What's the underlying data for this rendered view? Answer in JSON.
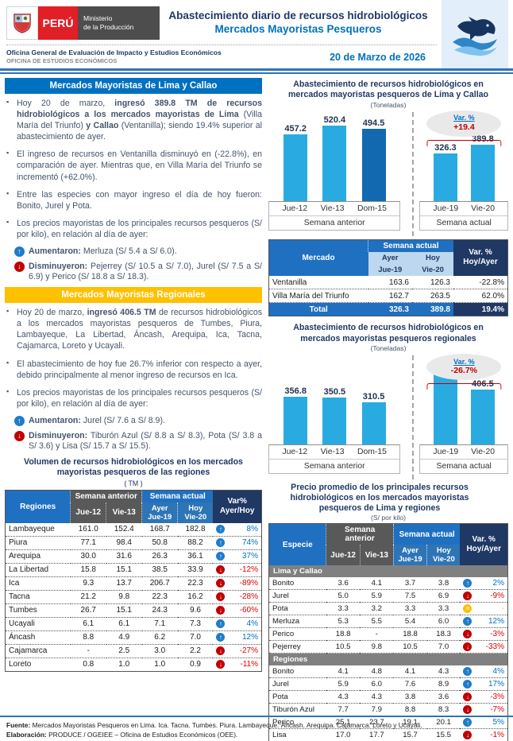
{
  "header": {
    "crest_icon": "peru-coat-of-arms",
    "country": "PERÚ",
    "ministry_line1": "Ministerio",
    "ministry_line2": "de la Producción",
    "title_line1": "Abastecimiento diario de recursos hidrobiológicos",
    "title_line2": "Mercados Mayoristas Pesqueros",
    "office_line1": "Oficina General de Evaluación de Impacto y Estudios Económicos",
    "office_line2": "OFICINA DE ESTUDIOS ECONÓMICOS",
    "date": "20 de Marzo de 2026",
    "fish_icon": "fish-over-waves"
  },
  "lima_section": {
    "title": "Mercados Mayoristas de Lima y Callao",
    "bullets": [
      "Hoy 20 de marzo, <b>ingresó 389.8 TM de recursos hidrobiológicos a los mercados mayoristas de Lima</b> (Villa María del Triunfo) <b>y Callao</b> (Ventanilla); siendo 19.4% superior al abastecimiento de ayer.",
      "El ingreso de recursos en Ventanilla disminuyó en (-22.8%), en comparación de ayer. Mientras que, en Villa María del Triunfo se incrementó (+62.0%).",
      "Entre las especies con mayor ingreso el día de hoy fueron: Bonito, Jurel y Pota.",
      "Los precios mayoristas de los principales recursos pesqueros (S/ por kilo), en relación al día de ayer:"
    ],
    "up_label": "Aumentaron:",
    "up_text": "Merluza (S/ 5.4 a S/ 6.0).",
    "down_label": "Disminuyeron:",
    "down_text": "Pejerrey (S/ 10.5 a S/ 7.0), Jurel (S/ 7.5 a S/ 6.9)  y Perico (S/ 18.8 a S/ 18.3)."
  },
  "regional_section": {
    "title": "Mercados Mayoristas Regionales",
    "bullets": [
      "Hoy 20 de marzo, <b>ingresó 406.5 TM</b> de recursos hidrobiológicos a los mercados mayoristas pesqueros de Tumbes, Piura, Lambayeque, La Libertad, Áncash, Arequipa, Ica, Tacna, Cajamarca, Loreto y Ucayali.",
      "El abastecimiento de hoy fue 26.7% inferior con respecto a ayer, debido principalmente al menor ingreso de recursos en Ica.",
      "Los precios mayoristas de los principales recursos pesqueros (S/ por kilo), en relación al día de ayer:"
    ],
    "up_label": "Aumentaron:",
    "up_text": "Jurel (S/ 7.6 a S/ 8.9).",
    "down_label": "Disminuyeron:",
    "down_text": "Tiburón Azul (S/ 8.8 a S/ 8.3), Pota (S/ 3.8 a S/ 3.6) y Lisa (S/ 15.7 a S/ 15.5)."
  },
  "regions_table": {
    "title_line1": "Volumen de recursos hidrobiológicos en los mercados",
    "title_line2": "mayoristas pesqueros de las regiones",
    "subtitle": "( TM )",
    "head": {
      "region": "Regiones",
      "prev": "Semana anterior",
      "curr": "Semana actual",
      "var1": "Var%",
      "var2": "Ayer/Hoy",
      "jue12": "Jue-12",
      "vie13": "Vie-13",
      "ayer": "Ayer",
      "hoy": "Hoy",
      "jue19": "Jue-19",
      "vie20": "Vie-20"
    },
    "rows": [
      {
        "name": "Lambayeque",
        "v": [
          "161.0",
          "152.4",
          "168.7",
          "182.8"
        ],
        "dir": "up",
        "var": "8%"
      },
      {
        "name": "Piura",
        "v": [
          "77.1",
          "98.4",
          "50.8",
          "88.2"
        ],
        "dir": "up",
        "var": "74%"
      },
      {
        "name": "Arequipa",
        "v": [
          "30.0",
          "31.6",
          "26.3",
          "36.1"
        ],
        "dir": "up",
        "var": "37%"
      },
      {
        "name": "La Libertad",
        "v": [
          "15.8",
          "15.1",
          "38.5",
          "33.9"
        ],
        "dir": "down",
        "var": "-12%"
      },
      {
        "name": "Ica",
        "v": [
          "9.3",
          "13.7",
          "206.7",
          "22.3"
        ],
        "dir": "down",
        "var": "-89%"
      },
      {
        "name": "Tacna",
        "v": [
          "21.2",
          "9.8",
          "22.3",
          "16.2"
        ],
        "dir": "down",
        "var": "-28%"
      },
      {
        "name": "Tumbes",
        "v": [
          "26.7",
          "15.1",
          "24.3",
          "9.6"
        ],
        "dir": "down",
        "var": "-60%"
      },
      {
        "name": "Ucayali",
        "v": [
          "6.1",
          "6.1",
          "7.1",
          "7.3"
        ],
        "dir": "up",
        "var": "4%"
      },
      {
        "name": "Áncash",
        "v": [
          "8.8",
          "4.9",
          "6.2",
          "7.0"
        ],
        "dir": "up",
        "var": "12%"
      },
      {
        "name": "Cajamarca",
        "v": [
          "-",
          "2.5",
          "3.0",
          "2.2"
        ],
        "dir": "down",
        "var": "-27%"
      },
      {
        "name": "Loreto",
        "v": [
          "0.8",
          "1.0",
          "1.0",
          "0.9"
        ],
        "dir": "down",
        "var": "-11%"
      }
    ]
  },
  "mercado_table": {
    "head": {
      "mercado": "Mercado",
      "curr": "Semana actual",
      "var1": "Var. %",
      "var2": "Hoy/Ayer",
      "ayer": "Ayer",
      "hoy": "Hoy",
      "jue19": "Jue-19",
      "vie20": "Vie-20"
    },
    "rows": [
      {
        "name": "Ventanilla",
        "ayer": "163.6",
        "hoy": "126.3",
        "var": "-22.8%"
      },
      {
        "name": "Villa María del Triunfo",
        "ayer": "162.7",
        "hoy": "263.5",
        "var": "62.0%"
      }
    ],
    "total": {
      "name": "Total",
      "ayer": "326.3",
      "hoy": "389.8",
      "var": "19.4%"
    }
  },
  "price_table": {
    "title": "Precio promedio de los principales recursos hidrobiológicos en los mercados mayoristas pesqueros de Lima y regiones",
    "subtitle": "(S/ por kilo)",
    "head": {
      "especie": "Especie",
      "prev": "Semana anterior",
      "curr": "Semana actual",
      "var1": "Var. %",
      "var2": "Hoy/Ayer",
      "jue12": "Jue-12",
      "vie13": "Vie-13",
      "ayer": "Ayer",
      "hoy": "Hoy",
      "jue19": "Jue-19",
      "vie20": "Vie-20"
    },
    "sections": [
      {
        "name": "Lima y Callao",
        "rows": [
          {
            "name": "Bonito",
            "v": [
              "3.6",
              "4.1",
              "3.7",
              "3.8"
            ],
            "dir": "up",
            "var": "2%"
          },
          {
            "name": "Jurel",
            "v": [
              "5.0",
              "5.9",
              "7.5",
              "6.9"
            ],
            "dir": "down",
            "var": "-9%"
          },
          {
            "name": "Pota",
            "v": [
              "3.3",
              "3.2",
              "3.3",
              "3.3"
            ],
            "dir": "eq",
            "var": "-"
          },
          {
            "name": "Merluza",
            "v": [
              "5.3",
              "5.5",
              "5.4",
              "6.0"
            ],
            "dir": "up",
            "var": "12%"
          },
          {
            "name": "Perico",
            "v": [
              "18.8",
              "-",
              "18.8",
              "18.3"
            ],
            "dir": "down",
            "var": "-3%"
          },
          {
            "name": "Pejerrey",
            "v": [
              "10.5",
              "9.8",
              "10.5",
              "7.0"
            ],
            "dir": "down",
            "var": "-33%"
          }
        ]
      },
      {
        "name": "Regiones",
        "rows": [
          {
            "name": "Bonito",
            "v": [
              "4.1",
              "4.8",
              "4.1",
              "4.3"
            ],
            "dir": "up",
            "var": "4%"
          },
          {
            "name": "Jurel",
            "v": [
              "5.9",
              "6.0",
              "7.6",
              "8.9"
            ],
            "dir": "up",
            "var": "17%"
          },
          {
            "name": "Pota",
            "v": [
              "4.3",
              "4.3",
              "3.8",
              "3.6"
            ],
            "dir": "down",
            "var": "-3%"
          },
          {
            "name": "Tiburón Azul",
            "v": [
              "7.7",
              "7.9",
              "8.8",
              "8.3"
            ],
            "dir": "down",
            "var": "-7%"
          },
          {
            "name": "Perico",
            "v": [
              "25.1",
              "23.7",
              "19.1",
              "20.1"
            ],
            "dir": "up",
            "var": "5%"
          },
          {
            "name": "Lisa",
            "v": [
              "17.0",
              "17.7",
              "15.7",
              "15.5"
            ],
            "dir": "down",
            "var": "-1%"
          }
        ]
      }
    ]
  },
  "footer": {
    "source_label": "Fuente:",
    "source_text": "Mercados Mayoristas Pesqueros en Lima. Ica. Tacna. Tumbes. Piura. Lambayeque. Áncash. Arequipa. Cajamarca. Loreto y Ucayali.",
    "elab_label": "Elaboración:",
    "elab_text": "PRODUCE / OGEIEE – Oficina de Estudios Económicos (OEE)."
  },
  "chart_data": [
    {
      "type": "bar",
      "title": "Abastecimiento de recursos hidrobiológicos en mercados mayoristas pesqueros de Lima y Callao",
      "subtitle": "(Toneladas)",
      "categories": [
        "Jue-12",
        "Vie-13",
        "Dom-15",
        "Jue-19",
        "Vie-20"
      ],
      "values": [
        457.2,
        520.4,
        494.5,
        326.3,
        389.8
      ],
      "groups": [
        "Semana anterior",
        "Semana actual"
      ],
      "group_split": 3,
      "highlight_index": 2,
      "var_label": "Var. %",
      "var_value": "+19.4",
      "ylim": [
        0,
        600
      ],
      "xlabel": "",
      "ylabel": "",
      "grid": false,
      "legend": "none"
    },
    {
      "type": "bar",
      "title": "Abastecimiento de recursos hidrobiológicos en mercados mayoristas pesqueros regionales",
      "subtitle": "(Toneladas)",
      "categories": [
        "Jue-12",
        "Vie-13",
        "Dom-15",
        "Jue-19",
        "Vie-20"
      ],
      "values": [
        356.8,
        350.5,
        310.5,
        554.9,
        406.5
      ],
      "groups": [
        "Semana anterior",
        "Semana actual"
      ],
      "group_split": 3,
      "highlight_index": -1,
      "var_label": "Var. %",
      "var_value": "-26.7%",
      "ylim": [
        0,
        650
      ],
      "xlabel": "",
      "ylabel": "",
      "grid": false,
      "legend": "none"
    }
  ],
  "colors": {
    "accent_blue": "#0070C0",
    "bar_blue": "#29ABE2",
    "bar_dark_blue": "#1269B0",
    "header_navy": "#1F3864",
    "orange": "#FFC000",
    "red": "#C00000",
    "gray_header": "#595959",
    "section_gray": "#808080"
  }
}
